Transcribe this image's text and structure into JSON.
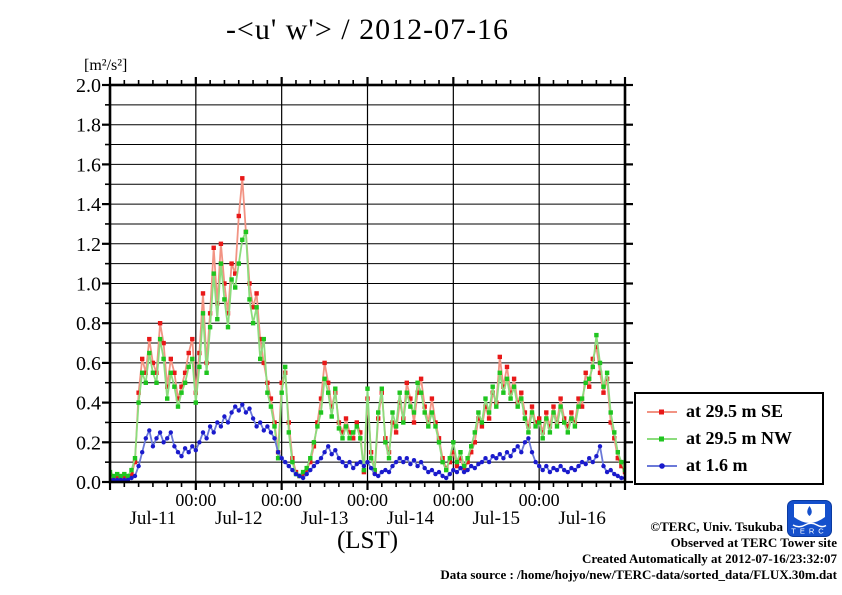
{
  "title": "-<u' w'> / 2012-07-16",
  "y_unit_label": "[m²/s²]",
  "x_axis_label": "(LST)",
  "annotations": {
    "copyright": "©TERC, Univ. Tsukuba",
    "observed": "Observed at TERC Tower site",
    "created": "Created Automatically at 2012-07-16/23:32:07",
    "data_source": "Data source : /home/hojyo/new/TERC-data/sorted_data/FLUX.30m.dat"
  },
  "logo": {
    "text": "TERC",
    "color": "#1550cc"
  },
  "chart_data": {
    "type": "line",
    "title": "-<u' w'> / 2012-07-16",
    "xlabel": "(LST)",
    "ylabel": "[m²/s²]",
    "ylim": [
      0.0,
      2.0
    ],
    "y_major_step": 0.2,
    "y_minor_step": 0.1,
    "y_tick_labels": [
      "0.0",
      "0.2",
      "0.4",
      "0.6",
      "0.8",
      "1.0",
      "1.2",
      "1.4",
      "1.6",
      "1.8",
      "2.0"
    ],
    "grid": true,
    "frame_color": "#000000",
    "x_start_hour": 0,
    "x_step_hours": 1,
    "x_total_hours": 144,
    "x_minor_tick_hours": 4,
    "x_gridline_hours": [
      24,
      48,
      72,
      96,
      120
    ],
    "x_time_labels": [
      {
        "hour": 24,
        "label": "00:00"
      },
      {
        "hour": 48,
        "label": "00:00"
      },
      {
        "hour": 72,
        "label": "00:00"
      },
      {
        "hour": 96,
        "label": "00:00"
      },
      {
        "hour": 120,
        "label": "00:00"
      }
    ],
    "x_day_labels": [
      {
        "hour": 12,
        "label": "Jul-11"
      },
      {
        "hour": 36,
        "label": "Jul-12"
      },
      {
        "hour": 60,
        "label": "Jul-13"
      },
      {
        "hour": 84,
        "label": "Jul-14"
      },
      {
        "hour": 108,
        "label": "Jul-15"
      },
      {
        "hour": 132,
        "label": "Jul-16"
      }
    ],
    "legend_position": "outside-right-bottom",
    "series": [
      {
        "name": "at 29.5 m SE",
        "marker": "square",
        "marker_color": "#e81818",
        "line_color": "#f29383",
        "values": [
          0.04,
          0.02,
          0.03,
          0.02,
          0.03,
          0.02,
          0.04,
          0.1,
          0.45,
          0.62,
          0.55,
          0.72,
          0.6,
          0.55,
          0.8,
          0.7,
          0.48,
          0.62,
          0.55,
          0.42,
          0.48,
          0.55,
          0.65,
          0.72,
          0.45,
          0.65,
          0.95,
          0.6,
          0.85,
          1.18,
          0.9,
          1.2,
          1.0,
          0.85,
          1.1,
          1.05,
          1.34,
          1.53,
          1.26,
          1.0,
          0.88,
          0.95,
          0.72,
          0.6,
          0.5,
          0.42,
          0.3,
          0.15,
          0.5,
          0.55,
          0.3,
          0.12,
          0.05,
          0.03,
          0.04,
          0.06,
          0.1,
          0.18,
          0.3,
          0.42,
          0.6,
          0.5,
          0.38,
          0.45,
          0.3,
          0.25,
          0.32,
          0.25,
          0.22,
          0.3,
          0.25,
          0.05,
          0.42,
          0.15,
          0.05,
          0.32,
          0.45,
          0.22,
          0.15,
          0.3,
          0.25,
          0.4,
          0.32,
          0.5,
          0.42,
          0.3,
          0.45,
          0.52,
          0.38,
          0.3,
          0.42,
          0.3,
          0.22,
          0.12,
          0.07,
          0.1,
          0.15,
          0.08,
          0.12,
          0.06,
          0.1,
          0.15,
          0.2,
          0.32,
          0.28,
          0.38,
          0.32,
          0.45,
          0.4,
          0.63,
          0.48,
          0.58,
          0.45,
          0.52,
          0.4,
          0.45,
          0.35,
          0.28,
          0.38,
          0.3,
          0.32,
          0.25,
          0.35,
          0.28,
          0.38,
          0.3,
          0.42,
          0.32,
          0.28,
          0.35,
          0.3,
          0.42,
          0.38,
          0.55,
          0.48,
          0.62,
          0.68,
          0.55,
          0.45,
          0.52,
          0.3,
          0.22,
          0.12,
          0.08,
          0.05
        ]
      },
      {
        "name": "at 29.5 m NW",
        "marker": "square",
        "marker_color": "#1fc51f",
        "line_color": "#8cdc7d",
        "values": [
          0.05,
          0.03,
          0.04,
          0.03,
          0.04,
          0.03,
          0.06,
          0.12,
          0.4,
          0.55,
          0.5,
          0.65,
          0.55,
          0.5,
          0.72,
          0.62,
          0.42,
          0.55,
          0.48,
          0.38,
          0.45,
          0.5,
          0.58,
          0.62,
          0.4,
          0.58,
          0.85,
          0.55,
          0.78,
          1.05,
          0.82,
          1.1,
          0.92,
          0.78,
          1.02,
          0.98,
          1.1,
          1.22,
          1.26,
          0.92,
          0.8,
          0.88,
          0.62,
          0.72,
          0.45,
          0.38,
          0.28,
          0.12,
          0.45,
          0.58,
          0.25,
          0.1,
          0.04,
          0.03,
          0.05,
          0.07,
          0.12,
          0.2,
          0.28,
          0.35,
          0.52,
          0.45,
          0.33,
          0.47,
          0.27,
          0.22,
          0.28,
          0.22,
          0.25,
          0.28,
          0.22,
          0.06,
          0.47,
          0.12,
          0.06,
          0.35,
          0.47,
          0.2,
          0.12,
          0.35,
          0.28,
          0.45,
          0.3,
          0.45,
          0.38,
          0.35,
          0.5,
          0.45,
          0.35,
          0.28,
          0.35,
          0.28,
          0.2,
          0.1,
          0.06,
          0.12,
          0.2,
          0.1,
          0.15,
          0.08,
          0.12,
          0.18,
          0.25,
          0.35,
          0.3,
          0.42,
          0.35,
          0.48,
          0.38,
          0.55,
          0.45,
          0.52,
          0.42,
          0.48,
          0.38,
          0.42,
          0.32,
          0.25,
          0.35,
          0.28,
          0.3,
          0.22,
          0.32,
          0.25,
          0.35,
          0.28,
          0.38,
          0.3,
          0.25,
          0.32,
          0.28,
          0.38,
          0.42,
          0.5,
          0.52,
          0.58,
          0.74,
          0.6,
          0.48,
          0.55,
          0.35,
          0.25,
          0.15,
          0.1,
          0.06
        ]
      },
      {
        "name": "at 1.6 m",
        "marker": "circle",
        "marker_color": "#1a1acc",
        "line_color": "#6b79d8",
        "values": [
          0.01,
          0.01,
          0.01,
          0.01,
          0.01,
          0.01,
          0.02,
          0.03,
          0.08,
          0.15,
          0.22,
          0.26,
          0.18,
          0.22,
          0.25,
          0.2,
          0.22,
          0.25,
          0.18,
          0.15,
          0.13,
          0.17,
          0.15,
          0.18,
          0.16,
          0.2,
          0.25,
          0.22,
          0.28,
          0.25,
          0.3,
          0.28,
          0.33,
          0.3,
          0.35,
          0.38,
          0.36,
          0.39,
          0.35,
          0.37,
          0.32,
          0.28,
          0.3,
          0.26,
          0.28,
          0.25,
          0.22,
          0.15,
          0.12,
          0.1,
          0.08,
          0.06,
          0.04,
          0.03,
          0.02,
          0.04,
          0.06,
          0.08,
          0.1,
          0.12,
          0.15,
          0.18,
          0.14,
          0.16,
          0.12,
          0.1,
          0.08,
          0.1,
          0.07,
          0.09,
          0.1,
          0.08,
          0.1,
          0.07,
          0.04,
          0.03,
          0.05,
          0.06,
          0.05,
          0.08,
          0.1,
          0.12,
          0.1,
          0.12,
          0.09,
          0.11,
          0.08,
          0.1,
          0.07,
          0.05,
          0.06,
          0.04,
          0.05,
          0.03,
          0.02,
          0.04,
          0.06,
          0.05,
          0.07,
          0.05,
          0.06,
          0.08,
          0.07,
          0.09,
          0.1,
          0.12,
          0.1,
          0.13,
          0.12,
          0.14,
          0.12,
          0.15,
          0.13,
          0.16,
          0.18,
          0.15,
          0.2,
          0.22,
          0.15,
          0.1,
          0.08,
          0.06,
          0.08,
          0.05,
          0.07,
          0.06,
          0.08,
          0.06,
          0.05,
          0.07,
          0.06,
          0.08,
          0.1,
          0.09,
          0.12,
          0.1,
          0.13,
          0.18,
          0.08,
          0.05,
          0.06,
          0.04,
          0.03,
          0.02,
          0.02
        ]
      }
    ]
  }
}
